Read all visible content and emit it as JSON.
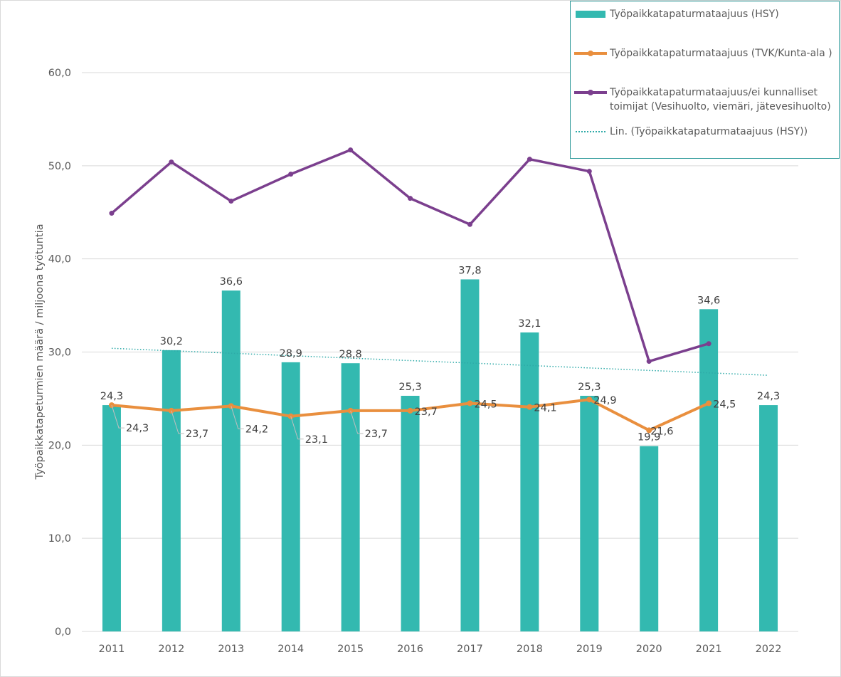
{
  "chart_data": {
    "type": "bar",
    "title": "",
    "xlabel": "",
    "ylabel": "Työpaikkatapeturmien määrä / miljoona työtuntia",
    "ylim": [
      0,
      60
    ],
    "yticks": [
      0,
      10,
      20,
      30,
      40,
      50,
      60
    ],
    "ytick_labels": [
      "0,0",
      "10,0",
      "20,0",
      "30,0",
      "40,0",
      "50,0",
      "60,0"
    ],
    "grid": true,
    "legend_position": "top-right",
    "categories": [
      "2011",
      "2012",
      "2013",
      "2014",
      "2015",
      "2016",
      "2017",
      "2018",
      "2019",
      "2020",
      "2021",
      "2022"
    ],
    "series": [
      {
        "name": "Työpaikkatapaturmataajuus (HSY)",
        "type": "bar",
        "color": "#33b9b0",
        "values": [
          24.3,
          30.2,
          36.6,
          28.9,
          28.8,
          25.3,
          37.8,
          32.1,
          25.3,
          19.9,
          34.6,
          24.3
        ],
        "labels": [
          "24,3",
          "30,2",
          "36,6",
          "28,9",
          "28,8",
          "25,3",
          "37,8",
          "32,1",
          "25,3",
          "19,9",
          "34,6",
          "24,3"
        ]
      },
      {
        "name": "Työpaikkatapaturmataajuus (TVK/Kunta-ala )",
        "type": "line",
        "color": "#e98f3e",
        "values": [
          24.3,
          23.7,
          24.2,
          23.1,
          23.7,
          23.7,
          24.5,
          24.1,
          24.9,
          21.6,
          24.5,
          null
        ],
        "labels": [
          "24,3",
          "23,7",
          "24,2",
          "23,1",
          "23,7",
          "23,7",
          "24,5",
          "24,1",
          "24,9",
          "21,6",
          "24,5",
          null
        ]
      },
      {
        "name": "Työpaikkatapaturmataajuus/ei kunnalliset toimijat (Vesihuolto, viemäri, jätevesihuolto)",
        "type": "line",
        "color": "#7b3f8e",
        "values": [
          44.9,
          50.4,
          46.2,
          49.1,
          51.7,
          46.5,
          43.7,
          50.7,
          49.4,
          29.0,
          30.9,
          null
        ]
      },
      {
        "name": "Lin. (Työpaikkatapaturmataajuus (HSY))",
        "type": "trendline",
        "color": "#2eaaa8",
        "start": 30.4,
        "end": 27.5
      }
    ]
  },
  "legend": {
    "items": [
      {
        "label": "Työpaikkatapaturmataajuus (HSY)",
        "kind": "bar",
        "color": "#33b9b0"
      },
      {
        "label": "Työpaikkatapaturmataajuus (TVK/Kunta-ala )",
        "kind": "line",
        "color": "#e98f3e"
      },
      {
        "label": "Työpaikkatapaturmataajuus/ei kunnalliset toimijat (Vesihuolto, viemäri, jätevesihuolto)",
        "kind": "line",
        "color": "#7b3f8e"
      },
      {
        "label": "Lin. (Työpaikkatapaturmataajuus (HSY))",
        "kind": "dotted",
        "color": "#2eaaa8"
      }
    ]
  }
}
